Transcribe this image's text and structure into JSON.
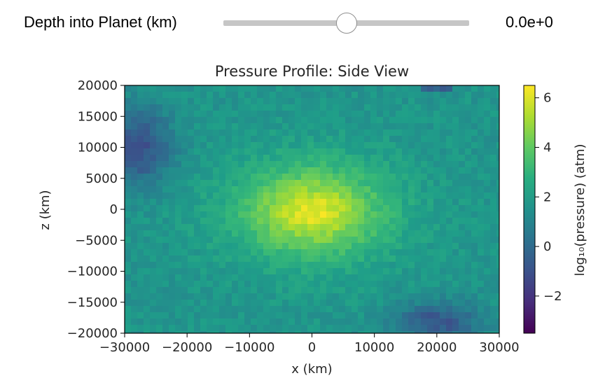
{
  "slider": {
    "label": "Depth into Planet (km)",
    "readout": "0.0e+0",
    "position_fraction": 0.5
  },
  "chart_data": {
    "type": "heatmap",
    "title": "Pressure Profile: Side View",
    "xlabel": "x (km)",
    "ylabel": "z (km)",
    "xlim": [
      -30000,
      30000
    ],
    "ylim": [
      -20000,
      20000
    ],
    "xticks": [
      -30000,
      -20000,
      -10000,
      0,
      10000,
      20000,
      30000
    ],
    "xtick_labels": [
      "−30000",
      "−20000",
      "−10000",
      "0",
      "10000",
      "20000",
      "30000"
    ],
    "yticks": [
      20000,
      15000,
      10000,
      5000,
      0,
      -5000,
      -10000,
      -15000,
      -20000
    ],
    "ytick_labels": [
      "20000",
      "15000",
      "10000",
      "5000",
      "0",
      "−5000",
      "−10000",
      "−15000",
      "−20000"
    ],
    "colormap": "viridis",
    "colorbar": {
      "label": "log₁₀(pressure) (atm)",
      "range": [
        -3.5,
        6.5
      ],
      "ticks": [
        6,
        4,
        2,
        0,
        -2
      ],
      "tick_labels": [
        "6",
        "4",
        "2",
        "0",
        "−2"
      ]
    },
    "field": {
      "center": [
        0,
        0
      ],
      "peak_log_pressure": 6.3,
      "background_log_pressure": 1.7,
      "low_corners_log_pressure": -1.5
    }
  },
  "colors": {
    "slider_track": "#c6c6c6",
    "slider_handle_border": "#8e8e8e"
  }
}
